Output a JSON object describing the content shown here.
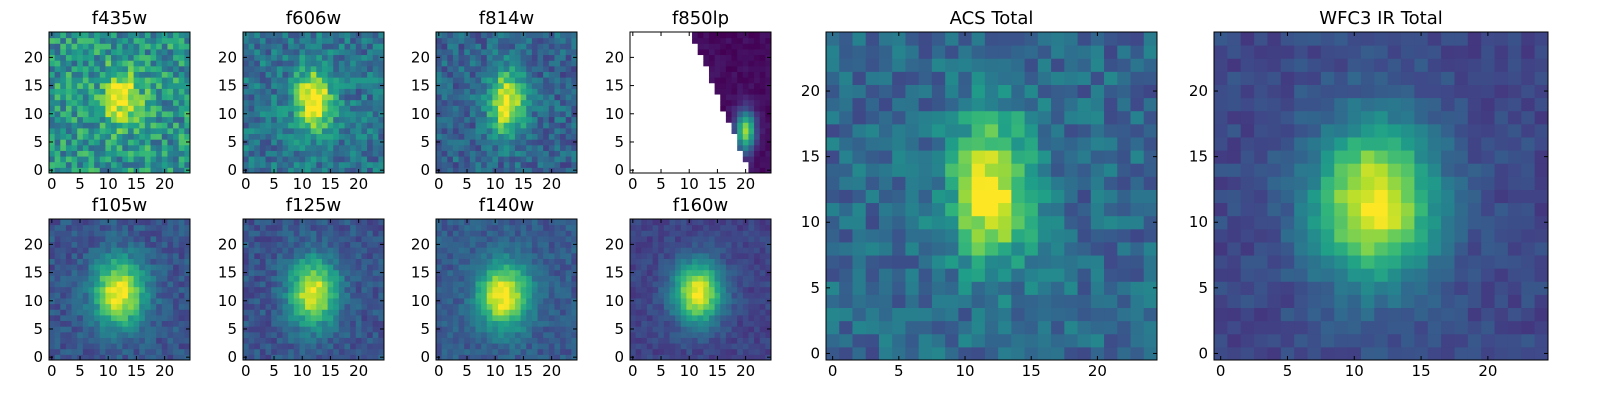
{
  "chart_data": [
    {
      "type": "heatmap",
      "title": "f435w",
      "colormap": "viridis",
      "grid_size": 25,
      "xlim": [
        0,
        24
      ],
      "ylim": [
        0,
        24
      ],
      "xticks": [
        0,
        5,
        10,
        15,
        20
      ],
      "yticks": [
        0,
        5,
        10,
        15,
        20
      ],
      "center": [
        12.5,
        13
      ],
      "sigma": [
        2.2,
        3.2
      ],
      "peak": 0.55,
      "background": 0.52,
      "noise": 0.22,
      "masked_region": "none"
    },
    {
      "type": "heatmap",
      "title": "f606w",
      "colormap": "viridis",
      "grid_size": 25,
      "xlim": [
        0,
        24
      ],
      "ylim": [
        0,
        24
      ],
      "xticks": [
        0,
        5,
        10,
        15,
        20
      ],
      "yticks": [
        0,
        5,
        10,
        15,
        20
      ],
      "center": [
        12,
        12.5
      ],
      "sigma": [
        2.4,
        3.8
      ],
      "peak": 0.7,
      "background": 0.38,
      "noise": 0.16,
      "masked_region": "none"
    },
    {
      "type": "heatmap",
      "title": "f814w",
      "colormap": "viridis",
      "grid_size": 25,
      "xlim": [
        0,
        24
      ],
      "ylim": [
        0,
        24
      ],
      "xticks": [
        0,
        5,
        10,
        15,
        20
      ],
      "yticks": [
        0,
        5,
        10,
        15,
        20
      ],
      "center": [
        12,
        12
      ],
      "sigma": [
        2.2,
        4
      ],
      "peak": 0.72,
      "background": 0.32,
      "noise": 0.14,
      "masked_region": "none"
    },
    {
      "type": "heatmap",
      "title": "f850lp",
      "colormap": "viridis",
      "grid_size": 25,
      "xlim": [
        0,
        24
      ],
      "ylim": [
        0,
        24
      ],
      "xticks": [
        0,
        5,
        10,
        15,
        20
      ],
      "yticks": [
        0,
        5,
        10,
        15,
        20
      ],
      "center": [
        20,
        7
      ],
      "sigma": [
        1.2,
        2.5
      ],
      "peak": 0.8,
      "background": 0.03,
      "noise": 0.03,
      "masked_region": "lower-left (no data)"
    },
    {
      "type": "heatmap",
      "title": "f105w",
      "colormap": "viridis",
      "grid_size": 25,
      "xlim": [
        0,
        24
      ],
      "ylim": [
        0,
        24
      ],
      "xticks": [
        0,
        5,
        10,
        15,
        20
      ],
      "yticks": [
        0,
        5,
        10,
        15,
        20
      ],
      "center": [
        12,
        11.5
      ],
      "sigma": [
        3.2,
        4.2
      ],
      "peak": 0.75,
      "background": 0.26,
      "noise": 0.09,
      "masked_region": "none"
    },
    {
      "type": "heatmap",
      "title": "f125w",
      "colormap": "viridis",
      "grid_size": 25,
      "xlim": [
        0,
        24
      ],
      "ylim": [
        0,
        24
      ],
      "xticks": [
        0,
        5,
        10,
        15,
        20
      ],
      "yticks": [
        0,
        5,
        10,
        15,
        20
      ],
      "center": [
        12,
        11.5
      ],
      "sigma": [
        3,
        4.2
      ],
      "peak": 0.72,
      "background": 0.26,
      "noise": 0.09,
      "masked_region": "none"
    },
    {
      "type": "heatmap",
      "title": "f140w",
      "colormap": "viridis",
      "grid_size": 25,
      "xlim": [
        0,
        24
      ],
      "ylim": [
        0,
        24
      ],
      "xticks": [
        0,
        5,
        10,
        15,
        20
      ],
      "yticks": [
        0,
        5,
        10,
        15,
        20
      ],
      "center": [
        11.5,
        11
      ],
      "sigma": [
        3.2,
        4
      ],
      "peak": 0.75,
      "background": 0.28,
      "noise": 0.08,
      "masked_region": "none"
    },
    {
      "type": "heatmap",
      "title": "f160w",
      "colormap": "viridis",
      "grid_size": 25,
      "xlim": [
        0,
        24
      ],
      "ylim": [
        0,
        24
      ],
      "xticks": [
        0,
        5,
        10,
        15,
        20
      ],
      "yticks": [
        0,
        5,
        10,
        15,
        20
      ],
      "center": [
        11.5,
        11.5
      ],
      "sigma": [
        3,
        3.8
      ],
      "peak": 0.8,
      "background": 0.2,
      "noise": 0.06,
      "masked_region": "none"
    },
    {
      "type": "heatmap",
      "title": "ACS Total",
      "colormap": "viridis",
      "grid_size": 25,
      "xlim": [
        0,
        24
      ],
      "ylim": [
        0,
        24
      ],
      "xticks": [
        0,
        5,
        10,
        15,
        20
      ],
      "yticks": [
        0,
        5,
        10,
        15,
        20
      ],
      "center": [
        12,
        12.5
      ],
      "sigma": [
        2.2,
        4
      ],
      "peak": 0.66,
      "background": 0.34,
      "noise": 0.13,
      "masked_region": "none"
    },
    {
      "type": "heatmap",
      "title": "WFC3 IR Total",
      "colormap": "viridis",
      "grid_size": 25,
      "xlim": [
        0,
        24
      ],
      "ylim": [
        0,
        24
      ],
      "xticks": [
        0,
        5,
        10,
        15,
        20
      ],
      "yticks": [
        0,
        5,
        10,
        15,
        20
      ],
      "center": [
        11.5,
        11.5
      ],
      "sigma": [
        3.2,
        4.2
      ],
      "peak": 0.78,
      "background": 0.22,
      "noise": 0.06,
      "masked_region": "none"
    }
  ]
}
